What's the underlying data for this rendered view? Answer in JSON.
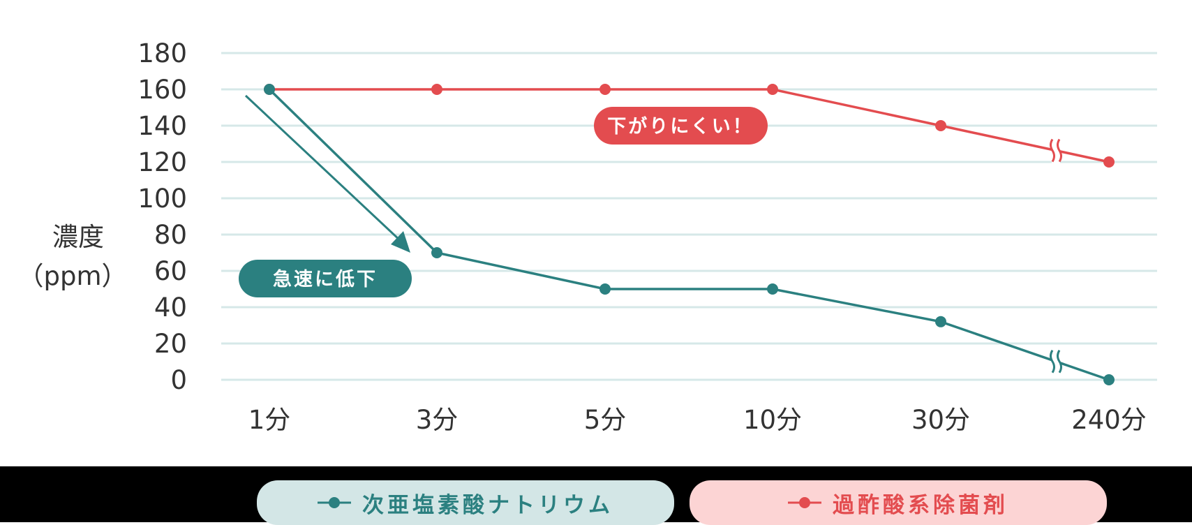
{
  "chart_data": {
    "type": "line",
    "title": "",
    "xlabel": "",
    "ylabel": "濃度（ppm）",
    "ylabel_lines": [
      "濃度",
      "（ppm）"
    ],
    "ylim": [
      0,
      180
    ],
    "yticks": [
      0,
      20,
      40,
      60,
      80,
      100,
      120,
      140,
      160,
      180
    ],
    "grid": true,
    "legend_position": "bottom",
    "categories": [
      "1分",
      "3分",
      "5分",
      "10分",
      "30分",
      "240分"
    ],
    "axis_break": {
      "between": [
        "30分",
        "240分"
      ]
    },
    "series": [
      {
        "name": "次亜塩素酸ナトリウム",
        "color": "#2b8080",
        "values": [
          160,
          70,
          50,
          50,
          32,
          0
        ]
      },
      {
        "name": "過酢酸系除菌剤",
        "color": "#e34c4f",
        "values": [
          160,
          160,
          160,
          160,
          140,
          120
        ]
      }
    ],
    "annotations": [
      {
        "text": "急速に低下",
        "series": "次亜塩素酸ナトリウム",
        "style": "teal-badge-with-arrow"
      },
      {
        "text": "下がりにくい！",
        "series": "過酢酸系除菌剤",
        "style": "red-badge"
      }
    ]
  },
  "labels": {
    "y_axis_line1": "濃度",
    "y_axis_line2": "（ppm）",
    "badge_rapid": "急速に低下",
    "badge_stable": "下がりにくい！"
  },
  "legend": {
    "items": [
      {
        "label": "次亜塩素酸ナトリウム",
        "color": "#2b8080",
        "bg": "#d3e6e6"
      },
      {
        "label": "過酢酸系除菌剤",
        "color": "#e34c4f",
        "bg": "#fcd4d4"
      }
    ]
  },
  "colors": {
    "teal": "#2b8080",
    "red": "#e34c4f",
    "grid": "#d6e8e8",
    "text": "#333333"
  }
}
